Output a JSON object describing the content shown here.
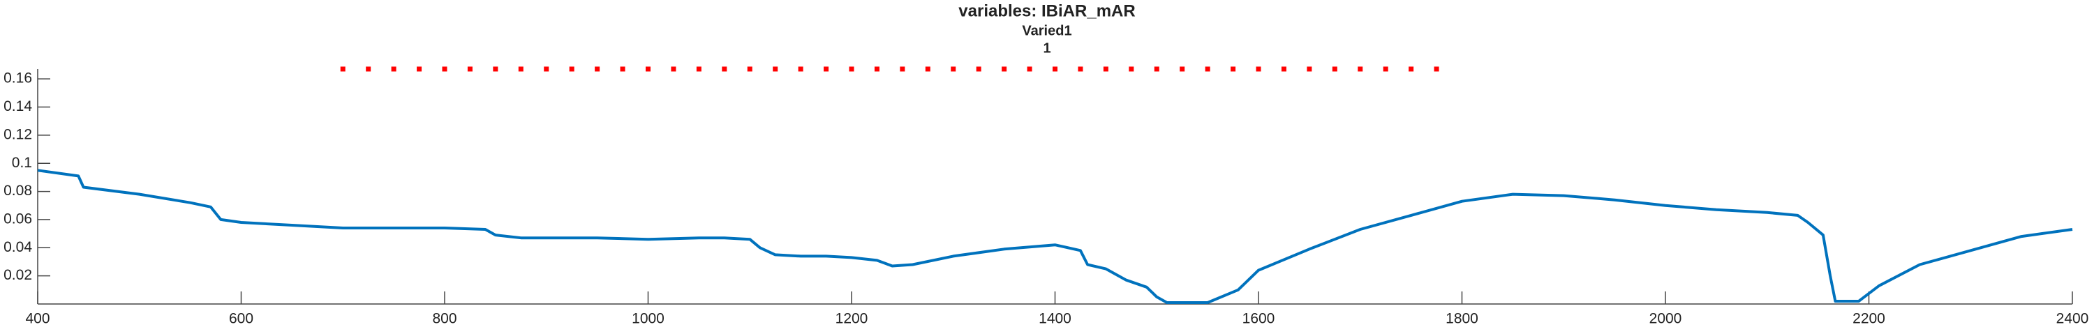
{
  "chart_data": {
    "type": "line",
    "title": "variables: IBiAR_mAR",
    "subtitles": [
      "Varied1",
      "1"
    ],
    "xlim": [
      400,
      2400
    ],
    "xticks": [
      400,
      600,
      800,
      1000,
      1200,
      1400,
      1600,
      1800,
      2000,
      2200,
      2400
    ],
    "ylim": [
      0,
      0.167
    ],
    "yticks": [
      0.02,
      0.04,
      0.06,
      0.08,
      0.1,
      0.12,
      0.14,
      0.16
    ],
    "series": [
      {
        "color": "#0072bd",
        "style": "line",
        "x": [
          400,
          440,
          445,
          500,
          550,
          570,
          580,
          600,
          650,
          700,
          750,
          800,
          840,
          850,
          875,
          900,
          950,
          1000,
          1050,
          1075,
          1100,
          1110,
          1125,
          1150,
          1175,
          1200,
          1225,
          1240,
          1260,
          1300,
          1350,
          1400,
          1425,
          1432,
          1450,
          1470,
          1490,
          1500,
          1510,
          1550,
          1580,
          1600,
          1650,
          1700,
          1750,
          1800,
          1850,
          1900,
          1950,
          2000,
          2050,
          2100,
          2130,
          2140,
          2155,
          2162,
          2167,
          2190,
          2210,
          2250,
          2300,
          2350,
          2400
        ],
        "values": [
          0.095,
          0.091,
          0.083,
          0.078,
          0.072,
          0.069,
          0.06,
          0.058,
          0.056,
          0.054,
          0.054,
          0.054,
          0.053,
          0.049,
          0.047,
          0.047,
          0.047,
          0.046,
          0.047,
          0.047,
          0.046,
          0.04,
          0.035,
          0.034,
          0.034,
          0.033,
          0.031,
          0.027,
          0.028,
          0.034,
          0.039,
          0.042,
          0.038,
          0.028,
          0.025,
          0.017,
          0.012,
          0.005,
          0.001,
          0.001,
          0.01,
          0.024,
          0.039,
          0.053,
          0.063,
          0.073,
          0.078,
          0.077,
          0.074,
          0.07,
          0.067,
          0.065,
          0.063,
          0.058,
          0.049,
          0.02,
          0.002,
          0.002,
          0.013,
          0.028,
          0.038,
          0.048,
          0.053
        ]
      },
      {
        "color": "#ff0000",
        "style": "dots",
        "x": [
          700,
          725,
          750,
          775,
          800,
          825,
          850,
          875,
          900,
          925,
          950,
          975,
          1000,
          1025,
          1050,
          1075,
          1100,
          1125,
          1150,
          1175,
          1200,
          1225,
          1250,
          1275,
          1300,
          1325,
          1350,
          1375,
          1400,
          1425,
          1450,
          1475,
          1500,
          1525,
          1550,
          1575,
          1600,
          1625,
          1650,
          1675,
          1700,
          1725,
          1750,
          1775
        ],
        "values": [
          0.167,
          0.167,
          0.167,
          0.167,
          0.167,
          0.167,
          0.167,
          0.167,
          0.167,
          0.167,
          0.167,
          0.167,
          0.167,
          0.167,
          0.167,
          0.167,
          0.167,
          0.167,
          0.167,
          0.167,
          0.167,
          0.167,
          0.167,
          0.167,
          0.167,
          0.167,
          0.167,
          0.167,
          0.167,
          0.167,
          0.167,
          0.167,
          0.167,
          0.167,
          0.167,
          0.167,
          0.167,
          0.167,
          0.167,
          0.167,
          0.167,
          0.167,
          0.167,
          0.167
        ]
      }
    ]
  }
}
